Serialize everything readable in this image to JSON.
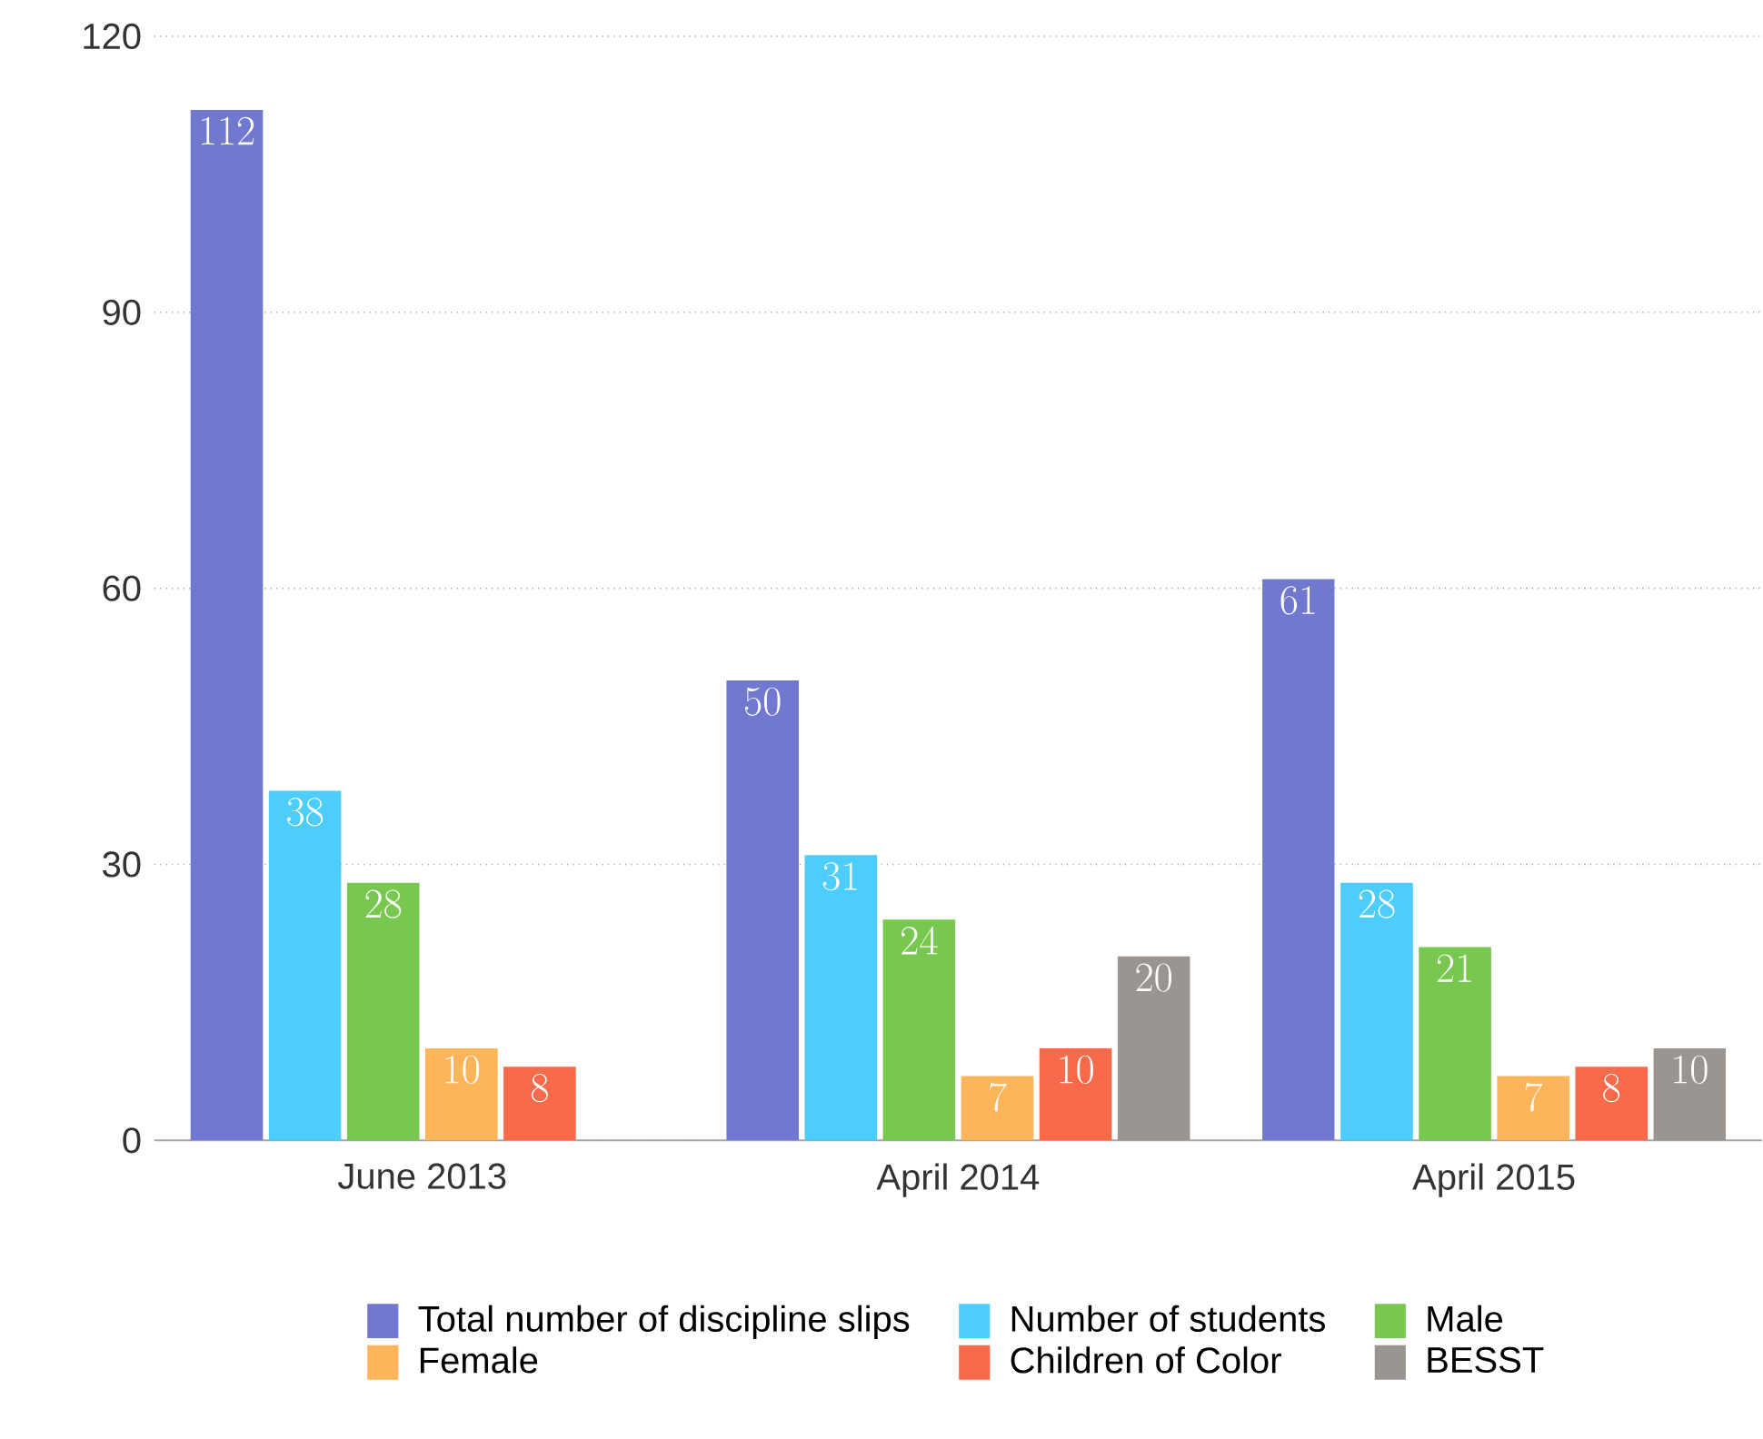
{
  "chart_data": {
    "type": "bar",
    "categories": [
      "June 2013",
      "April 2014",
      "April 2015"
    ],
    "series": [
      {
        "name": "Total number of discipline slips",
        "color": "#7079cf",
        "values": [
          112,
          50,
          61
        ]
      },
      {
        "name": "Number of students",
        "color": "#4dcdfb",
        "values": [
          38,
          31,
          28
        ]
      },
      {
        "name": "Male",
        "color": "#78c850",
        "values": [
          28,
          24,
          21
        ]
      },
      {
        "name": "Female",
        "color": "#fdb55a",
        "values": [
          10,
          7,
          7
        ]
      },
      {
        "name": "Children of Color",
        "color": "#f86a4a",
        "values": [
          8,
          10,
          8
        ]
      },
      {
        "name": "BESST",
        "color": "#9a9590",
        "values": [
          null,
          20,
          10
        ]
      }
    ],
    "ylim": [
      0,
      120
    ],
    "yticks": [
      0,
      30,
      60,
      90,
      120
    ],
    "grid": "y",
    "legend": "bottom",
    "data_labels": true
  }
}
